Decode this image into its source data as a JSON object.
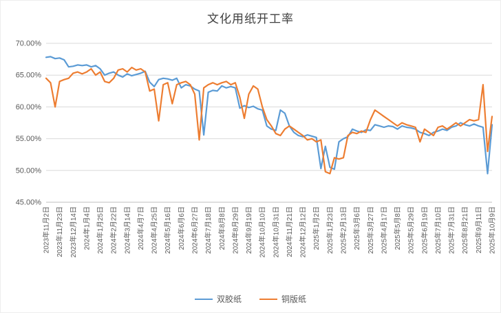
{
  "title": "文化用纸开工率",
  "colors": {
    "series1": "#5B9BD5",
    "series2": "#ED7D31",
    "grid": "#D9D9D9",
    "axis": "#BFBFBF",
    "tick_text": "#595959",
    "title_text": "#404040"
  },
  "legend": {
    "item1": "双胶纸",
    "item2": "铜版纸"
  },
  "chart_data": {
    "type": "line",
    "title": "文化用纸开工率",
    "xlabel": "",
    "ylabel": "",
    "ylim": [
      45,
      70
    ],
    "yticks": [
      "45.00%",
      "50.00%",
      "55.00%",
      "60.00%",
      "65.00%",
      "70.00%"
    ],
    "ytick_values": [
      45,
      50,
      55,
      60,
      65,
      70
    ],
    "grid": true,
    "legend_position": "bottom",
    "label_every": 3,
    "x_labels": [
      "2023年11月2日",
      "2023年11月23日",
      "2023年12月14日",
      "2024年1月4日",
      "2024年1月25日",
      "2024年2月22日",
      "2024年3月14日",
      "2024年4月7日",
      "2024年4月25日",
      "2024年5月16日",
      "2024年6月6日",
      "2024年6月27日",
      "2024年7月18日",
      "2024年8月8日",
      "2024年8月29日",
      "2024年9月19日",
      "2024年10月10日",
      "2024年10月31日",
      "2024年11月21日",
      "2024年12月12日",
      "2025年1月2日",
      "2025年1月23日",
      "2025年2月13日",
      "2025年3月6日",
      "2025年3月27日",
      "2025年4月17日",
      "2025年5月8日",
      "2025年5月29日",
      "2025年6月19日",
      "2025年7月10日",
      "2025年7月31日",
      "2025年8月21日",
      "2025年9月11日",
      "2025年10月9日"
    ],
    "series": [
      {
        "name": "双胶纸",
        "color": "#5B9BD5",
        "values": [
          67.8,
          67.9,
          67.6,
          67.7,
          67.4,
          66.3,
          66.4,
          66.6,
          66.5,
          66.6,
          66.3,
          66.5,
          66.0,
          65.0,
          65.3,
          65.5,
          65.0,
          64.7,
          65.2,
          64.9,
          65.1,
          65.3,
          65.6,
          63.9,
          63.2,
          64.3,
          64.5,
          64.4,
          64.2,
          64.5,
          63.0,
          63.5,
          63.3,
          62.8,
          62.5,
          55.6,
          62.3,
          62.6,
          62.5,
          63.3,
          63.0,
          63.2,
          63.0,
          59.8,
          60.2,
          59.9,
          60.1,
          59.7,
          59.5,
          57.0,
          56.5,
          56.3,
          59.5,
          59.0,
          57.0,
          56.0,
          55.5,
          55.3,
          55.6,
          55.4,
          55.2,
          50.3,
          53.8,
          50.5,
          50.2,
          54.5,
          55.0,
          55.3,
          56.5,
          56.2,
          56.0,
          56.4,
          56.3,
          57.2,
          57.0,
          56.8,
          57.0,
          56.9,
          56.5,
          57.0,
          56.8,
          56.7,
          56.5,
          56.0,
          55.8,
          55.5,
          56.0,
          56.2,
          56.5,
          56.3,
          56.8,
          57.0,
          57.5,
          57.2,
          57.0,
          57.3,
          57.0,
          56.8,
          49.5,
          57.2
        ]
      },
      {
        "name": "铜版纸",
        "color": "#ED7D31",
        "values": [
          64.5,
          63.8,
          60.0,
          64.0,
          64.3,
          64.5,
          65.3,
          65.5,
          65.2,
          65.5,
          66.0,
          65.0,
          65.5,
          64.0,
          63.8,
          64.5,
          65.8,
          66.0,
          65.5,
          66.2,
          65.8,
          66.0,
          65.5,
          62.5,
          62.8,
          57.8,
          63.5,
          63.8,
          60.5,
          63.5,
          63.8,
          64.0,
          63.5,
          62.0,
          54.8,
          63.0,
          63.5,
          63.8,
          63.5,
          63.8,
          64.0,
          63.5,
          63.8,
          61.5,
          58.2,
          62.0,
          63.3,
          62.8,
          60.0,
          58.0,
          57.0,
          55.8,
          55.5,
          56.5,
          57.0,
          56.5,
          56.0,
          55.5,
          54.8,
          55.0,
          54.5,
          54.8,
          49.8,
          49.5,
          52.0,
          51.8,
          52.0,
          55.5,
          56.0,
          55.8,
          56.2,
          56.0,
          58.0,
          59.5,
          59.0,
          58.5,
          58.0,
          57.5,
          57.0,
          57.5,
          57.2,
          57.0,
          56.8,
          54.5,
          56.5,
          56.0,
          55.5,
          56.8,
          57.0,
          56.5,
          57.0,
          57.5,
          57.0,
          57.5,
          58.0,
          57.8,
          58.0,
          63.5,
          53.0,
          58.5
        ]
      }
    ]
  }
}
